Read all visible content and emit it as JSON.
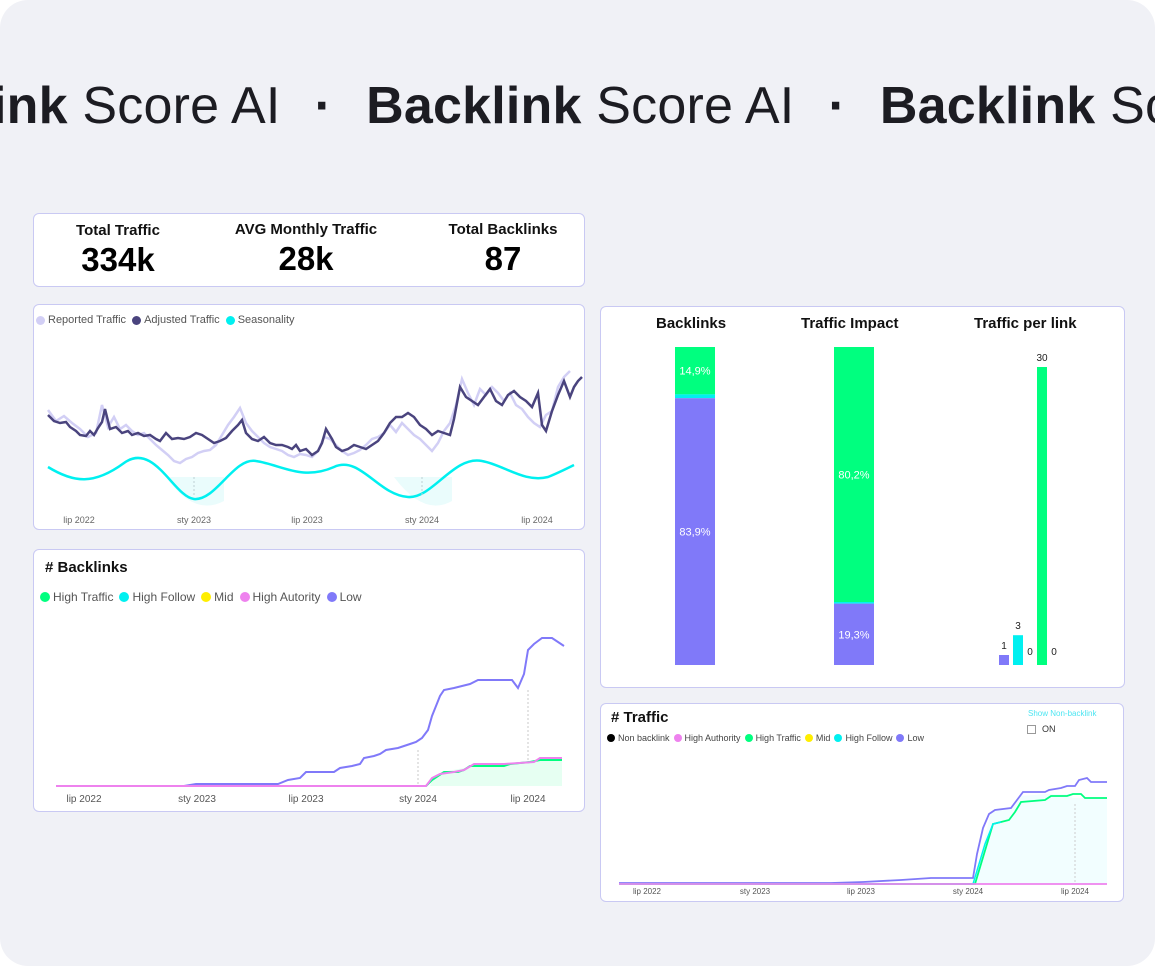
{
  "colors": {
    "background": "#f0f1f6",
    "green": "#00ff7f",
    "cyan": "#00f0f0",
    "purple": "#8079f9",
    "navy": "#4a447e",
    "lavender": "#d2cff5",
    "yellow": "#ffee00",
    "pink": "#ee82ee",
    "black": "#000000"
  },
  "marquee": {
    "segments": [
      {
        "bold": "ink",
        "light": "Score AI"
      },
      {
        "bold": "Backlink",
        "light": "Score AI"
      },
      {
        "bold": "Backlink",
        "light": "Score AI"
      }
    ],
    "separator": "·"
  },
  "kpis": [
    {
      "label": "Total Traffic",
      "value": "334k"
    },
    {
      "label": "AVG Monthly Traffic",
      "value": "28k"
    },
    {
      "label": "Total Backlinks",
      "value": "87"
    }
  ],
  "traffic_chart": {
    "legend": [
      {
        "name": "Reported Traffic",
        "color": "#d2cff5"
      },
      {
        "name": "Adjusted Traffic",
        "color": "#4a447e"
      },
      {
        "name": "Seasonality",
        "color": "#00f0f0"
      }
    ],
    "x_ticks": [
      "lip 2022",
      "sty 2023",
      "lip 2023",
      "sty 2024",
      "lip 2024"
    ]
  },
  "backlinks_chart": {
    "title": "# Backlinks",
    "legend": [
      {
        "name": "High Traffic",
        "color": "#00ff7f"
      },
      {
        "name": "High Follow",
        "color": "#00f0f0"
      },
      {
        "name": "Mid",
        "color": "#ffee00"
      },
      {
        "name": "High Autority",
        "color": "#ee82ee"
      },
      {
        "name": "Low",
        "color": "#8079f9"
      }
    ],
    "x_ticks": [
      "lip 2022",
      "sty 2023",
      "lip 2023",
      "sty 2024",
      "lip 2024"
    ]
  },
  "stacked_panel": {
    "columns": [
      {
        "title": "Backlinks",
        "top_label": "14,9%",
        "top_pct": 14.9,
        "bottom_label": "83,9%",
        "bottom_pct": 83.9
      },
      {
        "title": "Traffic Impact",
        "top_label": "80,2%",
        "top_pct": 80.2,
        "bottom_label": "19,3%",
        "bottom_pct": 19.3
      },
      {
        "title": "Traffic per link"
      }
    ],
    "per_link": [
      {
        "label": "1",
        "value": 1,
        "color": "#8079f9"
      },
      {
        "label": "3",
        "value": 3,
        "color": "#00f0f0"
      },
      {
        "label": "0",
        "value": 0,
        "color": "#00f0f0"
      },
      {
        "label": "30",
        "value": 30,
        "color": "#00ff7f"
      },
      {
        "label": "0",
        "value": 0,
        "color": "#00ff7f"
      }
    ]
  },
  "traffic_card": {
    "title": "# Traffic",
    "show_label": "Show Non-backlink",
    "toggle_label": "ON",
    "legend": [
      {
        "name": "Non backlink",
        "color": "#000000"
      },
      {
        "name": "High Authority",
        "color": "#ee82ee"
      },
      {
        "name": "High Traffic",
        "color": "#00ff7f"
      },
      {
        "name": "Mid",
        "color": "#ffee00"
      },
      {
        "name": "High Follow",
        "color": "#00f0f0"
      },
      {
        "name": "Low",
        "color": "#8079f9"
      }
    ],
    "x_ticks": [
      "lip 2022",
      "sty 2023",
      "lip 2023",
      "sty 2024",
      "lip 2024"
    ]
  },
  "chart_data": [
    {
      "type": "line",
      "x": [
        "lip 2022",
        "sty 2023",
        "lip 2023",
        "sty 2024",
        "lip 2024"
      ],
      "series": [
        {
          "name": "Reported Traffic",
          "values": [
            6.2,
            4.0,
            4.6,
            6.0,
            8.7
          ]
        },
        {
          "name": "Adjusted Traffic",
          "values": [
            6.0,
            4.4,
            4.6,
            5.4,
            8.2
          ]
        },
        {
          "name": "Seasonality",
          "values": [
            0.4,
            -0.3,
            0.6,
            -0.4,
            0.6
          ]
        }
      ]
    },
    {
      "type": "line",
      "title": "# Backlinks",
      "x": [
        "lip 2022",
        "sty 2023",
        "lip 2023",
        "sty 2024",
        "lip 2024"
      ],
      "series": [
        {
          "name": "Low",
          "values": [
            0,
            1,
            8,
            20,
            75
          ]
        },
        {
          "name": "High Traffic",
          "values": [
            0,
            0,
            0,
            0,
            13
          ]
        },
        {
          "name": "High Follow",
          "values": [
            0,
            0,
            0,
            0,
            12
          ]
        },
        {
          "name": "High Autority",
          "values": [
            0,
            0,
            0,
            0,
            0
          ]
        }
      ]
    },
    {
      "type": "bar",
      "title": "Backlinks / Traffic Impact",
      "categories": [
        "Backlinks",
        "Traffic Impact"
      ],
      "series": [
        {
          "name": "High Traffic",
          "values": [
            14.9,
            80.2
          ]
        },
        {
          "name": "Low",
          "values": [
            83.9,
            19.3
          ]
        }
      ]
    },
    {
      "type": "bar",
      "title": "Traffic per link",
      "categories": [
        "Low",
        "High Follow",
        "High Follow",
        "High Traffic",
        "High Traffic"
      ],
      "values": [
        1,
        3,
        0,
        30,
        0
      ]
    },
    {
      "type": "line",
      "title": "# Traffic",
      "x": [
        "lip 2022",
        "sty 2023",
        "lip 2023",
        "sty 2024",
        "lip 2024"
      ],
      "series": [
        {
          "name": "Low",
          "values": [
            0,
            0,
            2,
            5,
            100
          ]
        },
        {
          "name": "High Traffic",
          "values": [
            0,
            0,
            0,
            0,
            85
          ]
        },
        {
          "name": "High Authority",
          "values": [
            0,
            0,
            0,
            0,
            0
          ]
        }
      ]
    }
  ]
}
